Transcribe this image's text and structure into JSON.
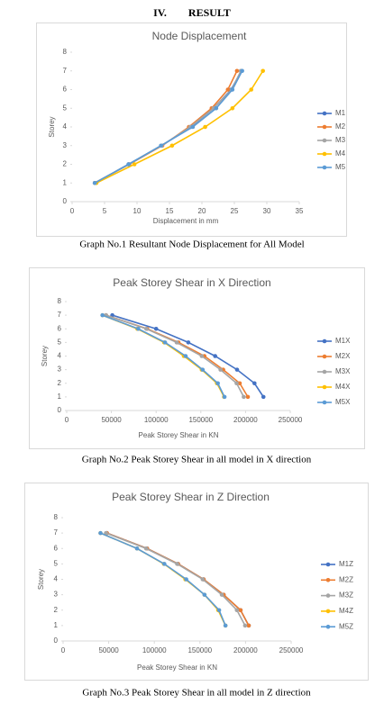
{
  "heading": "IV.        RESULT",
  "captions": [
    "Graph No.1 Resultant Node Displacement for All Model",
    "Graph No.2 Peak Storey Shear in all model in X direction",
    "Graph No.3 Peak Storey Shear in all model in Z direction"
  ],
  "chart_data": [
    {
      "type": "line",
      "title": "Node Displacement",
      "x_label": "Displacement in mm",
      "y_label": "Storey",
      "xlim": [
        0,
        35
      ],
      "xticks": [
        0,
        5,
        10,
        15,
        20,
        25,
        30,
        35
      ],
      "ylim": [
        0,
        8
      ],
      "yticks": [
        0,
        1,
        2,
        3,
        4,
        5,
        6,
        7,
        8
      ],
      "legend": "right",
      "series": [
        {
          "name": "M1",
          "color": "#4472c4",
          "x": [
            3.5,
            8.7,
            13.8,
            18.3,
            21.8,
            24.5,
            26.1
          ],
          "values": [
            1,
            2,
            3,
            4,
            5,
            6,
            7
          ]
        },
        {
          "name": "M2",
          "color": "#ed7d31",
          "x": [
            3.5,
            8.8,
            13.9,
            18,
            21.5,
            24,
            25.4
          ],
          "values": [
            1,
            2,
            3,
            4,
            5,
            6,
            7
          ]
        },
        {
          "name": "M3",
          "color": "#a5a5a5",
          "x": [
            3.5,
            8.7,
            13.8,
            18.2,
            21.8,
            24.6,
            26
          ],
          "values": [
            1,
            2,
            3,
            4,
            5,
            6,
            7
          ]
        },
        {
          "name": "M4",
          "color": "#ffc000",
          "x": [
            3.75,
            9.6,
            15.4,
            20.5,
            24.7,
            27.6,
            29.4
          ],
          "values": [
            1,
            2,
            3,
            4,
            5,
            6,
            7
          ]
        },
        {
          "name": "M5",
          "color": "#5b9bd5",
          "x": [
            3.5,
            8.7,
            13.7,
            18.6,
            22.2,
            24.7,
            26.2
          ],
          "values": [
            1,
            2,
            3,
            4,
            5,
            6,
            7
          ]
        }
      ]
    },
    {
      "type": "line",
      "title": "Peak Storey Shear in X Direction",
      "x_label": "Peak Storey Shear in KN",
      "y_label": "Storey",
      "xlim": [
        0,
        250000
      ],
      "xticks": [
        0,
        50000,
        100000,
        150000,
        200000,
        250000
      ],
      "ylim": [
        0,
        8
      ],
      "yticks": [
        0,
        1,
        2,
        3,
        4,
        5,
        6,
        7,
        8
      ],
      "legend": "right",
      "series": [
        {
          "name": "M1X",
          "color": "#4472c4",
          "x": [
            220000,
            210000,
            190500,
            166000,
            136000,
            100000,
            51000
          ],
          "values": [
            1,
            2,
            3,
            4,
            5,
            6,
            7
          ]
        },
        {
          "name": "M2X",
          "color": "#ed7d31",
          "x": [
            202600,
            193500,
            175000,
            154000,
            125000,
            90000,
            44000
          ],
          "values": [
            1,
            2,
            3,
            4,
            5,
            6,
            7
          ]
        },
        {
          "name": "M3X",
          "color": "#a5a5a5",
          "x": [
            198000,
            190000,
            172000,
            151000,
            123000,
            89000,
            44000
          ],
          "values": [
            1,
            2,
            3,
            4,
            5,
            6,
            7
          ]
        },
        {
          "name": "M4X",
          "color": "#ffc000",
          "x": [
            176000,
            168000,
            151000,
            131000,
            109000,
            79000,
            40000
          ],
          "values": [
            1,
            2,
            3,
            4,
            5,
            6,
            7
          ]
        },
        {
          "name": "M5X",
          "color": "#5b9bd5",
          "x": [
            176500,
            169000,
            152000,
            133000,
            110000,
            80000,
            40000
          ],
          "values": [
            1,
            2,
            3,
            4,
            5,
            6,
            7
          ]
        }
      ]
    },
    {
      "type": "line",
      "title": "Peak Storey Shear in Z Direction",
      "x_label": "Peak Storey Shear in KN",
      "y_label": "Storey",
      "xlim": [
        0,
        250000
      ],
      "xticks": [
        0,
        50000,
        100000,
        150000,
        200000,
        250000
      ],
      "ylim": [
        0,
        8
      ],
      "yticks": [
        0,
        1,
        2,
        3,
        4,
        5,
        6,
        7,
        8
      ],
      "legend": "right",
      "series": [
        {
          "name": "M1Z",
          "color": "#4472c4",
          "x": [
            203500,
            194500,
            176000,
            154000,
            126000,
            92000,
            48000
          ],
          "values": [
            1,
            2,
            3,
            4,
            5,
            6,
            7
          ]
        },
        {
          "name": "M2Z",
          "color": "#ed7d31",
          "x": [
            203500,
            194500,
            176000,
            154000,
            126000,
            92000,
            48000
          ],
          "values": [
            1,
            2,
            3,
            4,
            5,
            6,
            7
          ]
        },
        {
          "name": "M3Z",
          "color": "#a5a5a5",
          "x": [
            199500,
            190500,
            174000,
            153000,
            125000,
            91000,
            47000
          ],
          "values": [
            1,
            2,
            3,
            4,
            5,
            6,
            7
          ]
        },
        {
          "name": "M4Z",
          "color": "#ffc000",
          "x": [
            178000,
            170000,
            155000,
            134000,
            110500,
            81000,
            41000
          ],
          "values": [
            1,
            2,
            3,
            4,
            5,
            6,
            7
          ]
        },
        {
          "name": "M5Z",
          "color": "#5b9bd5",
          "x": [
            178000,
            171000,
            155000,
            135000,
            111000,
            81000,
            41000
          ],
          "values": [
            1,
            2,
            3,
            4,
            5,
            6,
            7
          ]
        }
      ]
    }
  ]
}
